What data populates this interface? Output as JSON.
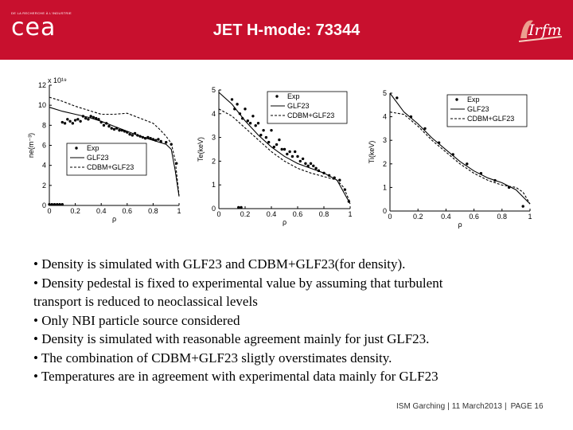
{
  "header": {
    "logo_tagline": "DE LA RECHERCHE À L'INDUSTRIE",
    "logo_word": "cea",
    "title": "JET H-mode: 73344",
    "partner_logo": "Irfm",
    "colors": {
      "banner": "#c8102e",
      "text": "#ffffff"
    }
  },
  "chart_data": [
    {
      "type": "line",
      "panel": "density",
      "xlabel": "ρ",
      "ylabel": "ne(m⁻³)",
      "y_exponent_label": "x 10¹⁹",
      "xlim": [
        0,
        1
      ],
      "ylim": [
        0,
        12
      ],
      "xticks": [
        "0",
        "0.2",
        "0.4",
        "0.6",
        "0.8",
        "1"
      ],
      "yticks": [
        "0",
        "2",
        "4",
        "6",
        "8",
        "10",
        "12"
      ],
      "legend": {
        "position": "bottom-left",
        "entries": [
          "Exp",
          "GLF23",
          "CDBM+GLF23"
        ]
      },
      "series": [
        {
          "name": "Exp",
          "style": "markers",
          "x": [
            0.1,
            0.12,
            0.14,
            0.16,
            0.18,
            0.2,
            0.22,
            0.24,
            0.26,
            0.28,
            0.3,
            0.32,
            0.34,
            0.36,
            0.38,
            0.4,
            0.42,
            0.44,
            0.46,
            0.48,
            0.5,
            0.52,
            0.54,
            0.56,
            0.58,
            0.6,
            0.62,
            0.64,
            0.66,
            0.68,
            0.7,
            0.72,
            0.74,
            0.76,
            0.78,
            0.8,
            0.82,
            0.84,
            0.86,
            0.9,
            0.94,
            0.98
          ],
          "y": [
            8.3,
            8.2,
            8.6,
            8.4,
            8.2,
            8.5,
            8.6,
            8.4,
            8.9,
            8.7,
            8.6,
            8.9,
            8.8,
            8.7,
            8.6,
            8.3,
            8.0,
            8.2,
            7.9,
            7.7,
            7.6,
            7.7,
            7.5,
            7.5,
            7.4,
            7.3,
            7.1,
            7.0,
            7.2,
            7.0,
            6.9,
            6.8,
            6.7,
            6.8,
            6.7,
            6.6,
            6.5,
            6.6,
            6.4,
            6.3,
            6.1,
            4.2
          ]
        },
        {
          "name": "GLF23",
          "style": "solid",
          "x": [
            0,
            0.1,
            0.2,
            0.3,
            0.4,
            0.5,
            0.6,
            0.7,
            0.8,
            0.85,
            0.9,
            0.94,
            0.97,
            1.0
          ],
          "y": [
            9.8,
            9.4,
            9.1,
            8.8,
            8.4,
            7.9,
            7.4,
            6.9,
            6.5,
            6.3,
            6.1,
            5.6,
            3.5,
            0.9
          ]
        },
        {
          "name": "CDBM+GLF23",
          "style": "dashed",
          "x": [
            0,
            0.1,
            0.2,
            0.3,
            0.4,
            0.5,
            0.6,
            0.7,
            0.8,
            0.85,
            0.9,
            0.94,
            0.97,
            1.0
          ],
          "y": [
            10.8,
            10.4,
            9.9,
            9.5,
            9.1,
            9.1,
            9.2,
            8.7,
            8.2,
            7.6,
            6.9,
            6.2,
            4.5,
            1.0
          ]
        },
        {
          "name": "",
          "style": "markers",
          "x": [
            0.0,
            0.02,
            0.04,
            0.06,
            0.08,
            0.1
          ],
          "y": [
            0.1,
            0.1,
            0.1,
            0.1,
            0.1,
            0.1
          ]
        }
      ]
    },
    {
      "type": "line",
      "panel": "electron-temperature",
      "xlabel": "ρ",
      "ylabel": "Te(keV)",
      "xlim": [
        0,
        1
      ],
      "ylim": [
        0,
        5
      ],
      "xticks": [
        "0",
        "0.2",
        "0.4",
        "0.6",
        "0.8",
        "1"
      ],
      "yticks": [
        "0",
        "1",
        "2",
        "3",
        "4",
        "5"
      ],
      "legend": {
        "position": "top-right",
        "entries": [
          "Exp",
          "GLF23",
          "CDBM+GLF23"
        ]
      },
      "series": [
        {
          "name": "Exp",
          "style": "markers",
          "x": [
            0.1,
            0.12,
            0.14,
            0.16,
            0.18,
            0.2,
            0.22,
            0.24,
            0.26,
            0.28,
            0.3,
            0.32,
            0.34,
            0.36,
            0.38,
            0.4,
            0.42,
            0.44,
            0.46,
            0.48,
            0.5,
            0.52,
            0.54,
            0.56,
            0.58,
            0.6,
            0.62,
            0.64,
            0.66,
            0.68,
            0.7,
            0.72,
            0.74,
            0.76,
            0.8,
            0.84,
            0.88,
            0.92,
            0.96,
            0.99
          ],
          "y": [
            4.6,
            4.2,
            4.4,
            4.0,
            3.8,
            4.2,
            3.7,
            3.6,
            3.9,
            3.5,
            3.6,
            3.1,
            3.3,
            3.0,
            2.8,
            3.3,
            2.6,
            2.7,
            2.9,
            2.5,
            2.5,
            2.3,
            2.4,
            2.2,
            2.4,
            2.2,
            2.0,
            2.1,
            1.9,
            1.8,
            1.9,
            1.8,
            1.7,
            1.6,
            1.5,
            1.4,
            1.3,
            1.2,
            0.8,
            0.3
          ]
        },
        {
          "name": "GLF23",
          "style": "solid",
          "x": [
            0,
            0.1,
            0.2,
            0.3,
            0.4,
            0.5,
            0.6,
            0.7,
            0.8,
            0.9,
            0.95,
            1.0
          ],
          "y": [
            4.9,
            4.4,
            3.7,
            3.1,
            2.6,
            2.2,
            1.9,
            1.7,
            1.5,
            1.2,
            0.7,
            0.2
          ]
        },
        {
          "name": "CDBM+GLF23",
          "style": "dashed",
          "x": [
            0,
            0.1,
            0.2,
            0.3,
            0.4,
            0.5,
            0.6,
            0.7,
            0.8,
            0.9,
            0.95,
            1.0
          ],
          "y": [
            4.2,
            3.9,
            3.4,
            2.9,
            2.4,
            2.0,
            1.7,
            1.5,
            1.35,
            1.2,
            0.9,
            0.25
          ]
        },
        {
          "name": "",
          "style": "markers",
          "x": [
            0.15,
            0.17
          ],
          "y": [
            0.05,
            0.05
          ]
        }
      ]
    },
    {
      "type": "line",
      "panel": "ion-temperature",
      "xlabel": "ρ",
      "ylabel": "Ti(keV)",
      "xlim": [
        0,
        1
      ],
      "ylim": [
        0,
        5
      ],
      "xticks": [
        "0",
        "0.2",
        "0.4",
        "0.6",
        "0.8",
        "1"
      ],
      "yticks": [
        "0",
        "1",
        "2",
        "3",
        "4",
        "5"
      ],
      "legend": {
        "position": "top-right",
        "entries": [
          "Exp",
          "GLF23",
          "CDBM+GLF23"
        ]
      },
      "series": [
        {
          "name": "Exp",
          "style": "markers",
          "x": [
            0.05,
            0.15,
            0.25,
            0.35,
            0.45,
            0.55,
            0.65,
            0.75,
            0.85,
            0.95
          ],
          "y": [
            4.8,
            4.0,
            3.5,
            2.9,
            2.4,
            2.0,
            1.6,
            1.3,
            1.0,
            0.2
          ]
        },
        {
          "name": "GLF23",
          "style": "solid",
          "x": [
            0,
            0.05,
            0.1,
            0.2,
            0.3,
            0.4,
            0.5,
            0.6,
            0.7,
            0.8,
            0.9,
            0.95,
            1.0
          ],
          "y": [
            5.0,
            4.6,
            4.2,
            3.7,
            3.1,
            2.6,
            2.1,
            1.7,
            1.4,
            1.2,
            0.9,
            0.6,
            0.3
          ]
        },
        {
          "name": "CDBM+GLF23",
          "style": "dashed",
          "x": [
            0,
            0.1,
            0.2,
            0.3,
            0.4,
            0.5,
            0.6,
            0.7,
            0.8,
            0.9,
            0.95,
            1.0
          ],
          "y": [
            4.2,
            4.1,
            3.6,
            3.0,
            2.5,
            2.0,
            1.6,
            1.3,
            1.1,
            1.0,
            0.8,
            0.3
          ]
        }
      ]
    }
  ],
  "bullets": [
    "• Density is simulated with GLF23 and CDBM+GLF23(for density).",
    "• Density pedestal is fixed to experimental value by assuming that turbulent",
    "transport is reduced to neoclassical levels",
    "• Only NBI particle source considered",
    "• Density is simulated with reasonable agreement mainly for just GLF23.",
    "• The combination of CDBM+GLF23  sligtly overstimates density.",
    "• Temperatures are in agreement with experimental data mainly for GLF23"
  ],
  "footer": {
    "event": "ISM Garching",
    "date": "11 March2013",
    "page_label": "PAGE 16"
  }
}
